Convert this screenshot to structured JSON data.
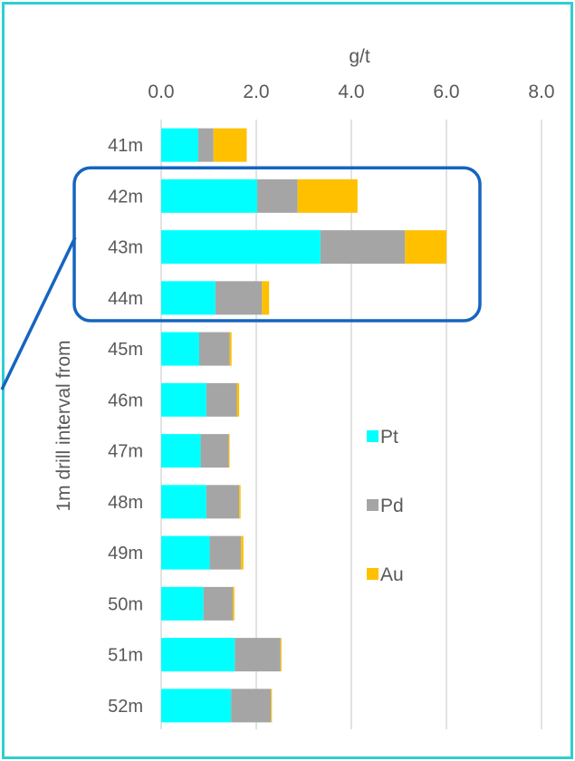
{
  "chart_data": {
    "type": "bar",
    "orientation": "horizontal",
    "stacked": true,
    "xlabel": "g/t",
    "ylabel": "1m drill interval from",
    "xlim": [
      0,
      8
    ],
    "xticks": [
      "0.0",
      "2.0",
      "4.0",
      "6.0",
      "8.0"
    ],
    "x_axis_position": "top",
    "grid": true,
    "legend_position": "right",
    "categories": [
      "41m",
      "42m",
      "43m",
      "44m",
      "45m",
      "46m",
      "47m",
      "48m",
      "49m",
      "50m",
      "51m",
      "52m"
    ],
    "series": [
      {
        "name": "Pt",
        "color": "#00FFFF",
        "values": [
          0.78,
          2.02,
          3.35,
          1.14,
          0.8,
          0.95,
          0.83,
          0.95,
          1.02,
          0.89,
          1.55,
          1.47
        ]
      },
      {
        "name": "Pd",
        "color": "#A5A5A5",
        "values": [
          0.32,
          0.85,
          1.78,
          0.98,
          0.64,
          0.64,
          0.59,
          0.69,
          0.66,
          0.62,
          0.96,
          0.84
        ]
      },
      {
        "name": "Au",
        "color": "#FFC000",
        "values": [
          0.7,
          1.26,
          0.87,
          0.15,
          0.04,
          0.05,
          0.02,
          0.03,
          0.05,
          0.03,
          0.02,
          0.02
        ]
      }
    ],
    "highlight": {
      "categories": [
        "42m",
        "43m",
        "44m"
      ],
      "color": "#1565C0"
    }
  },
  "colors": {
    "frame": "#2ECFCF",
    "grid": "#D9D9D9",
    "text": "#595959",
    "highlight": "#1565C0"
  }
}
